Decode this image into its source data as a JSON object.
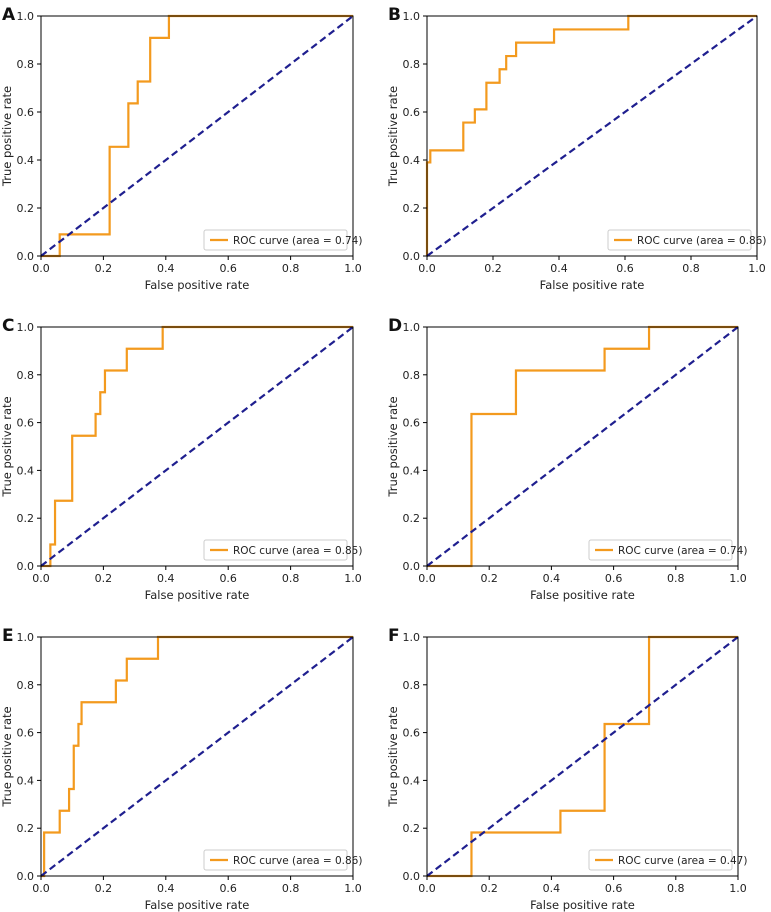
{
  "colors": {
    "roc": "#f39a1e",
    "chance": "#1f1f8f",
    "axes": "#000000"
  },
  "chart_data": [
    {
      "panel": "A",
      "type": "line",
      "xlabel": "False positive rate",
      "ylabel": "True positive rate",
      "xlim": [
        0,
        1
      ],
      "ylim": [
        0,
        1
      ],
      "xticks": [
        "0.0",
        "0.2",
        "0.4",
        "0.6",
        "0.8",
        "1.0"
      ],
      "yticks": [
        "0.0",
        "0.2",
        "0.4",
        "0.6",
        "0.8",
        "1.0"
      ],
      "legend": "ROC curve (area = 0.74)",
      "legend_loc": "lower-right",
      "series": [
        {
          "name": "ROC curve",
          "x": [
            0,
            0.06,
            0.06,
            0.22,
            0.22,
            0.28,
            0.28,
            0.31,
            0.31,
            0.35,
            0.35,
            0.41,
            0.41,
            1.0
          ],
          "y": [
            0,
            0,
            0.09,
            0.09,
            0.455,
            0.455,
            0.636,
            0.636,
            0.727,
            0.727,
            0.909,
            0.909,
            1.0,
            1.0
          ]
        },
        {
          "name": "chance",
          "x": [
            0,
            1
          ],
          "y": [
            0,
            1
          ],
          "style": "dashed"
        }
      ]
    },
    {
      "panel": "B",
      "type": "line",
      "xlabel": "False positive rate",
      "ylabel": "True positive rate",
      "xlim": [
        0,
        1
      ],
      "ylim": [
        0,
        1
      ],
      "xticks": [
        "0.0",
        "0.2",
        "0.4",
        "0.6",
        "0.8",
        "1.0"
      ],
      "yticks": [
        "0.0",
        "0.2",
        "0.4",
        "0.6",
        "0.8",
        "1.0"
      ],
      "legend": "ROC curve (area = 0.86)",
      "legend_loc": "lower-right",
      "series": [
        {
          "name": "ROC curve",
          "x": [
            0,
            0,
            0.01,
            0.01,
            0.11,
            0.11,
            0.145,
            0.145,
            0.18,
            0.18,
            0.22,
            0.22,
            0.24,
            0.24,
            0.27,
            0.27,
            0.385,
            0.385,
            0.61,
            0.61,
            1.0
          ],
          "y": [
            0,
            0.39,
            0.39,
            0.44,
            0.44,
            0.556,
            0.556,
            0.611,
            0.611,
            0.722,
            0.722,
            0.778,
            0.778,
            0.833,
            0.833,
            0.889,
            0.889,
            0.944,
            0.944,
            1.0,
            1.0
          ]
        },
        {
          "name": "chance",
          "x": [
            0,
            1
          ],
          "y": [
            0,
            1
          ],
          "style": "dashed"
        }
      ]
    },
    {
      "panel": "C",
      "type": "line",
      "xlabel": "False positive rate",
      "ylabel": "True positive rate",
      "xlim": [
        0,
        1
      ],
      "ylim": [
        0,
        1
      ],
      "xticks": [
        "0.0",
        "0.2",
        "0.4",
        "0.6",
        "0.8",
        "1.0"
      ],
      "yticks": [
        "0.0",
        "0.2",
        "0.4",
        "0.6",
        "0.8",
        "1.0"
      ],
      "legend": "ROC curve (area = 0.85)",
      "legend_loc": "lower-right",
      "series": [
        {
          "name": "ROC curve",
          "x": [
            0,
            0.03,
            0.03,
            0.045,
            0.045,
            0.1,
            0.1,
            0.175,
            0.175,
            0.19,
            0.19,
            0.205,
            0.205,
            0.275,
            0.275,
            0.39,
            0.39,
            1.0
          ],
          "y": [
            0,
            0,
            0.09,
            0.09,
            0.273,
            0.273,
            0.545,
            0.545,
            0.636,
            0.636,
            0.727,
            0.727,
            0.818,
            0.818,
            0.909,
            0.909,
            1.0,
            1.0
          ]
        },
        {
          "name": "chance",
          "x": [
            0,
            1
          ],
          "y": [
            0,
            1
          ],
          "style": "dashed"
        }
      ]
    },
    {
      "panel": "D",
      "type": "line",
      "xlabel": "False positive rate",
      "ylabel": "True positive rate",
      "xlim": [
        0,
        1
      ],
      "ylim": [
        0,
        1
      ],
      "xticks": [
        "0.0",
        "0.2",
        "0.4",
        "0.6",
        "0.8",
        "1.0"
      ],
      "yticks": [
        "0.0",
        "0.2",
        "0.4",
        "0.6",
        "0.8",
        "1.0"
      ],
      "legend": "ROC curve (area = 0.74)",
      "legend_loc": "lower-right",
      "series": [
        {
          "name": "ROC curve",
          "x": [
            0,
            0.143,
            0.143,
            0.286,
            0.286,
            0.571,
            0.571,
            0.714,
            0.714,
            1.0
          ],
          "y": [
            0,
            0,
            0.636,
            0.636,
            0.818,
            0.818,
            0.909,
            0.909,
            1.0,
            1.0
          ]
        },
        {
          "name": "chance",
          "x": [
            0,
            1
          ],
          "y": [
            0,
            1
          ],
          "style": "dashed"
        }
      ]
    },
    {
      "panel": "E",
      "type": "line",
      "xlabel": "False positive rate",
      "ylabel": "True positive rate",
      "xlim": [
        0,
        1
      ],
      "ylim": [
        0,
        1
      ],
      "xticks": [
        "0.0",
        "0.2",
        "0.4",
        "0.6",
        "0.8",
        "1.0"
      ],
      "yticks": [
        "0.0",
        "0.2",
        "0.4",
        "0.6",
        "0.8",
        "1.0"
      ],
      "legend": "ROC curve (area = 0.86)",
      "legend_loc": "lower-right",
      "series": [
        {
          "name": "ROC curve",
          "x": [
            0,
            0.01,
            0.01,
            0.06,
            0.06,
            0.09,
            0.09,
            0.105,
            0.105,
            0.12,
            0.12,
            0.13,
            0.13,
            0.24,
            0.24,
            0.275,
            0.275,
            0.375,
            0.375,
            1.0
          ],
          "y": [
            0,
            0,
            0.182,
            0.182,
            0.273,
            0.273,
            0.364,
            0.364,
            0.545,
            0.545,
            0.636,
            0.636,
            0.727,
            0.727,
            0.818,
            0.818,
            0.909,
            0.909,
            1.0,
            1.0
          ]
        },
        {
          "name": "chance",
          "x": [
            0,
            1
          ],
          "y": [
            0,
            1
          ],
          "style": "dashed"
        }
      ]
    },
    {
      "panel": "F",
      "type": "line",
      "xlabel": "False positive rate",
      "ylabel": "True positive rate",
      "xlim": [
        0,
        1
      ],
      "ylim": [
        0,
        1
      ],
      "xticks": [
        "0.0",
        "0.2",
        "0.4",
        "0.6",
        "0.8",
        "1.0"
      ],
      "yticks": [
        "0.0",
        "0.2",
        "0.4",
        "0.6",
        "0.8",
        "1.0"
      ],
      "legend": "ROC curve (area = 0.47)",
      "legend_loc": "lower-right",
      "series": [
        {
          "name": "ROC curve",
          "x": [
            0,
            0.143,
            0.143,
            0.429,
            0.429,
            0.571,
            0.571,
            0.714,
            0.714,
            1.0
          ],
          "y": [
            0,
            0,
            0.182,
            0.182,
            0.273,
            0.273,
            0.636,
            0.636,
            1.0,
            1.0
          ]
        },
        {
          "name": "chance",
          "x": [
            0,
            1
          ],
          "y": [
            0,
            1
          ],
          "style": "dashed"
        }
      ]
    }
  ]
}
